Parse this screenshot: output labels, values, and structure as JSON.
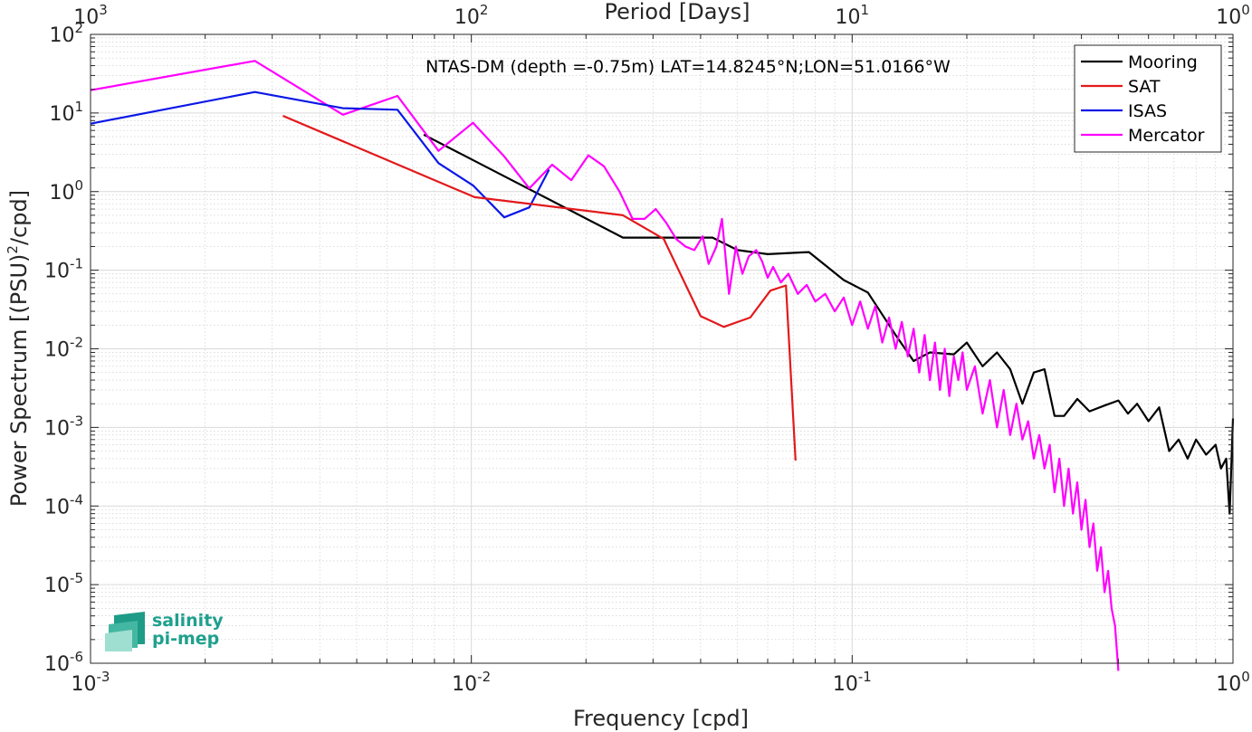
{
  "chart_data": {
    "type": "line",
    "title": "NTAS-DM (depth =-0.75m) LAT=14.8245°N;LON=51.0166°W",
    "xlabel": "Frequency [cpd]",
    "ylabel_main": "Power Spectrum [(PSU)",
    "ylabel_sup": "2",
    "ylabel_tail": "/cpd]",
    "top_xlabel": "Period [Days]",
    "x_scale": "log",
    "y_scale": "log",
    "xlim": [
      0.001,
      1
    ],
    "ylim": [
      1e-06,
      100
    ],
    "grid": true,
    "legend_position": "top-right",
    "x_ticks": [
      {
        "base": "10",
        "exp": "-3",
        "value": 0.001
      },
      {
        "base": "10",
        "exp": "-2",
        "value": 0.01
      },
      {
        "base": "10",
        "exp": "-1",
        "value": 0.1
      },
      {
        "base": "10",
        "exp": "0",
        "value": 1
      }
    ],
    "top_ticks": [
      {
        "base": "10",
        "exp": "3",
        "value": 0.001
      },
      {
        "base": "10",
        "exp": "2",
        "value": 0.01
      },
      {
        "base": "10",
        "exp": "1",
        "value": 0.1
      },
      {
        "base": "10",
        "exp": "0",
        "value": 1
      }
    ],
    "y_ticks": [
      {
        "base": "10",
        "exp": "2",
        "value": 100
      },
      {
        "base": "10",
        "exp": "1",
        "value": 10
      },
      {
        "base": "10",
        "exp": "0",
        "value": 1
      },
      {
        "base": "10",
        "exp": "-1",
        "value": 0.1
      },
      {
        "base": "10",
        "exp": "-2",
        "value": 0.01
      },
      {
        "base": "10",
        "exp": "-3",
        "value": 0.001
      },
      {
        "base": "10",
        "exp": "-4",
        "value": 0.0001
      },
      {
        "base": "10",
        "exp": "-5",
        "value": 1e-05
      },
      {
        "base": "10",
        "exp": "-6",
        "value": 1e-06
      }
    ],
    "series": [
      {
        "name": "Mooring",
        "color": "#000000",
        "x": [
          0.0075,
          0.025,
          0.033,
          0.043,
          0.05,
          0.06,
          0.077,
          0.095,
          0.11,
          0.13,
          0.145,
          0.16,
          0.185,
          0.2,
          0.22,
          0.24,
          0.26,
          0.28,
          0.3,
          0.32,
          0.34,
          0.36,
          0.39,
          0.42,
          0.46,
          0.5,
          0.53,
          0.56,
          0.6,
          0.64,
          0.68,
          0.72,
          0.76,
          0.8,
          0.85,
          0.9,
          0.93,
          0.96,
          0.98,
          1.0
        ],
        "y": [
          5.3,
          0.26,
          0.26,
          0.26,
          0.18,
          0.16,
          0.17,
          0.075,
          0.052,
          0.015,
          0.007,
          0.009,
          0.0085,
          0.012,
          0.006,
          0.009,
          0.0055,
          0.002,
          0.005,
          0.0055,
          0.0014,
          0.0014,
          0.0023,
          0.0016,
          0.0019,
          0.0022,
          0.0015,
          0.002,
          0.0012,
          0.0018,
          0.0005,
          0.0007,
          0.0004,
          0.0007,
          0.00045,
          0.0006,
          0.0003,
          0.0004,
          8e-05,
          0.0013
        ]
      },
      {
        "name": "SAT",
        "color": "#e3191c",
        "x": [
          0.0032,
          0.0102,
          0.025,
          0.032,
          0.04,
          0.046,
          0.054,
          0.061,
          0.067,
          0.071
        ],
        "y": [
          9.2,
          0.85,
          0.5,
          0.25,
          0.026,
          0.019,
          0.025,
          0.055,
          0.064,
          0.00038
        ]
      },
      {
        "name": "ISAS",
        "color": "#0b18e6",
        "x": [
          0.001,
          0.0027,
          0.0046,
          0.0064,
          0.0082,
          0.0101,
          0.0122,
          0.0142,
          0.016
        ],
        "y": [
          7.3,
          18.5,
          11.5,
          11,
          2.3,
          1.2,
          0.47,
          0.63,
          1.9
        ]
      },
      {
        "name": "Mercator",
        "color": "#ff00ff",
        "x": [
          0.001,
          0.0027,
          0.0046,
          0.0064,
          0.0082,
          0.0101,
          0.0122,
          0.0142,
          0.0163,
          0.0183,
          0.0203,
          0.0223,
          0.0245,
          0.0265,
          0.0285,
          0.0305,
          0.0325,
          0.0345,
          0.0365,
          0.0385,
          0.0405,
          0.042,
          0.044,
          0.0455,
          0.0475,
          0.0495,
          0.0515,
          0.0535,
          0.056,
          0.058,
          0.06,
          0.062,
          0.065,
          0.068,
          0.072,
          0.076,
          0.08,
          0.085,
          0.09,
          0.095,
          0.1,
          0.105,
          0.11,
          0.115,
          0.12,
          0.125,
          0.13,
          0.135,
          0.14,
          0.145,
          0.15,
          0.155,
          0.16,
          0.165,
          0.17,
          0.175,
          0.18,
          0.185,
          0.19,
          0.195,
          0.2,
          0.21,
          0.22,
          0.23,
          0.24,
          0.25,
          0.26,
          0.27,
          0.28,
          0.29,
          0.3,
          0.31,
          0.32,
          0.33,
          0.34,
          0.35,
          0.36,
          0.37,
          0.38,
          0.39,
          0.4,
          0.41,
          0.42,
          0.43,
          0.44,
          0.45,
          0.46,
          0.47,
          0.48,
          0.49,
          0.5
        ],
        "y": [
          19.5,
          46,
          9.5,
          16.5,
          3.3,
          7.5,
          2.8,
          1.1,
          2.2,
          1.4,
          2.9,
          2.1,
          1.0,
          0.45,
          0.45,
          0.6,
          0.4,
          0.25,
          0.2,
          0.18,
          0.27,
          0.12,
          0.2,
          0.45,
          0.05,
          0.2,
          0.09,
          0.15,
          0.18,
          0.13,
          0.08,
          0.11,
          0.07,
          0.09,
          0.05,
          0.065,
          0.04,
          0.05,
          0.03,
          0.045,
          0.02,
          0.04,
          0.018,
          0.035,
          0.012,
          0.025,
          0.01,
          0.022,
          0.008,
          0.018,
          0.005,
          0.015,
          0.004,
          0.012,
          0.003,
          0.01,
          0.0025,
          0.008,
          0.004,
          0.009,
          0.003,
          0.006,
          0.0015,
          0.004,
          0.001,
          0.003,
          0.0008,
          0.002,
          0.0007,
          0.0012,
          0.0004,
          0.0008,
          0.0003,
          0.0006,
          0.00015,
          0.0004,
          0.0001,
          0.0003,
          8e-05,
          0.0002,
          5e-05,
          0.00012,
          3e-05,
          6e-05,
          1.5e-05,
          3e-05,
          8e-06,
          1.5e-05,
          5e-06,
          3e-06,
          8e-07
        ]
      }
    ]
  },
  "logo": {
    "line1": "salinity",
    "line2": "pi-mep"
  }
}
